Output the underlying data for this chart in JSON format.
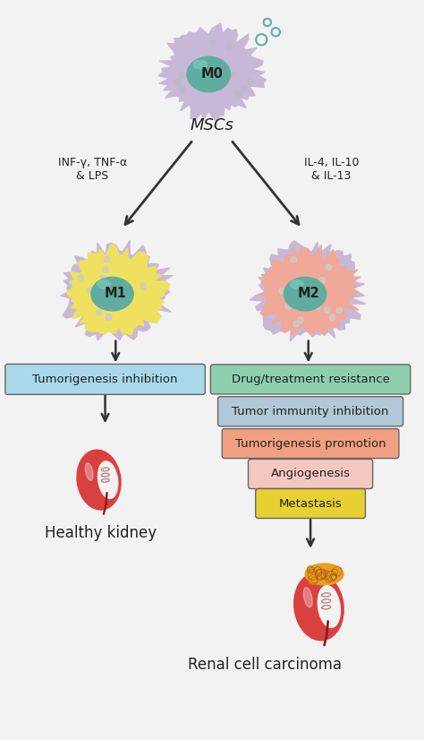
{
  "bg_color": "#f2f2f2",
  "m0_label": "M0",
  "mscs_label": "MSCs",
  "m1_label": "M1",
  "m2_label": "M2",
  "left_arrow_text": "INF-γ, TNF-α\n& LPS",
  "right_arrow_text": "IL-4, IL-10\n& IL-13",
  "box_left_label": "Tumorigenesis inhibition",
  "box_right_labels": [
    "Drug/treatment resistance",
    "Tumor immunity inhibition",
    "Tumorigenesis promotion",
    "Angiogenesis",
    "Metastasis"
  ],
  "box_left_color": "#a8d8ea",
  "box_right_colors": [
    "#8ecfb0",
    "#b0c8d8",
    "#f0a080",
    "#f4c8c0",
    "#e8d030"
  ],
  "healthy_kidney_label": "Healthy kidney",
  "rcc_label": "Renal cell carcinoma",
  "cell_m0_body_color": "#c8b8d8",
  "cell_m0_nucleus_color": "#5fada0",
  "cell_m1_body_color": "#f0e060",
  "cell_m1_border_color": "#c8b8d8",
  "cell_m1_nucleus_color": "#5fada0",
  "cell_m2_body_color": "#f0a898",
  "cell_m2_border_color": "#c8b8d8",
  "cell_m2_nucleus_color": "#5fada0",
  "arrow_color": "#333333",
  "kidney_color": "#d94040",
  "kidney_dark": "#8b1a1a",
  "tumor_color": "#e8a020",
  "bubble_color": "#5fada0",
  "dot_color_m0": "#bbbbcc",
  "dot_color_m1m2": "#cccccc",
  "nucleus_highlight": "#7fcfc0"
}
